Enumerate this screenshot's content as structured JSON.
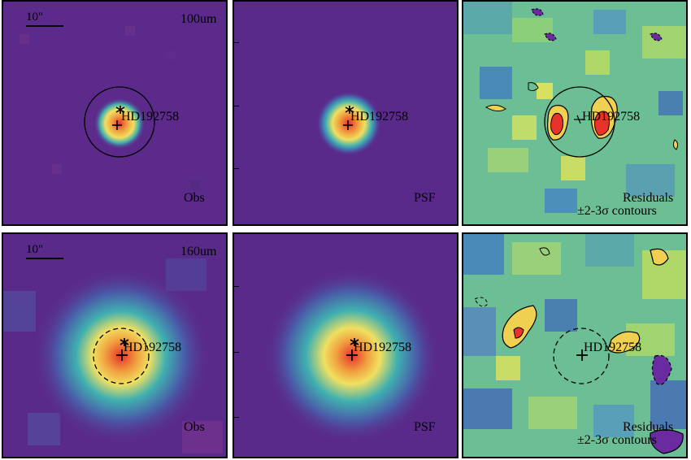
{
  "figure": {
    "target_name": "HD192758",
    "scale_bar_label": "10\"",
    "rows": [
      {
        "band": "100um",
        "panels": [
          {
            "kind": "observed",
            "label": "Obs",
            "target": "HD192758"
          },
          {
            "kind": "psf",
            "label": "PSF",
            "target": "HD192758"
          },
          {
            "kind": "residual",
            "label": "Residuals",
            "sublabel": "±2-3σ contours",
            "target": "HD192758"
          }
        ]
      },
      {
        "band": "160um",
        "panels": [
          {
            "kind": "observed",
            "label": "Obs",
            "target": "HD192758"
          },
          {
            "kind": "psf",
            "label": "PSF",
            "target": "HD192758"
          },
          {
            "kind": "residual",
            "label": "Residuals",
            "sublabel": "±2-3σ contours",
            "target": "HD192758"
          }
        ]
      }
    ],
    "colors": {
      "background_map": "#5a2a8a",
      "peak": "#e8322a",
      "residual_positive": "#f0d050",
      "residual_negative": "#6a2aa0"
    }
  }
}
